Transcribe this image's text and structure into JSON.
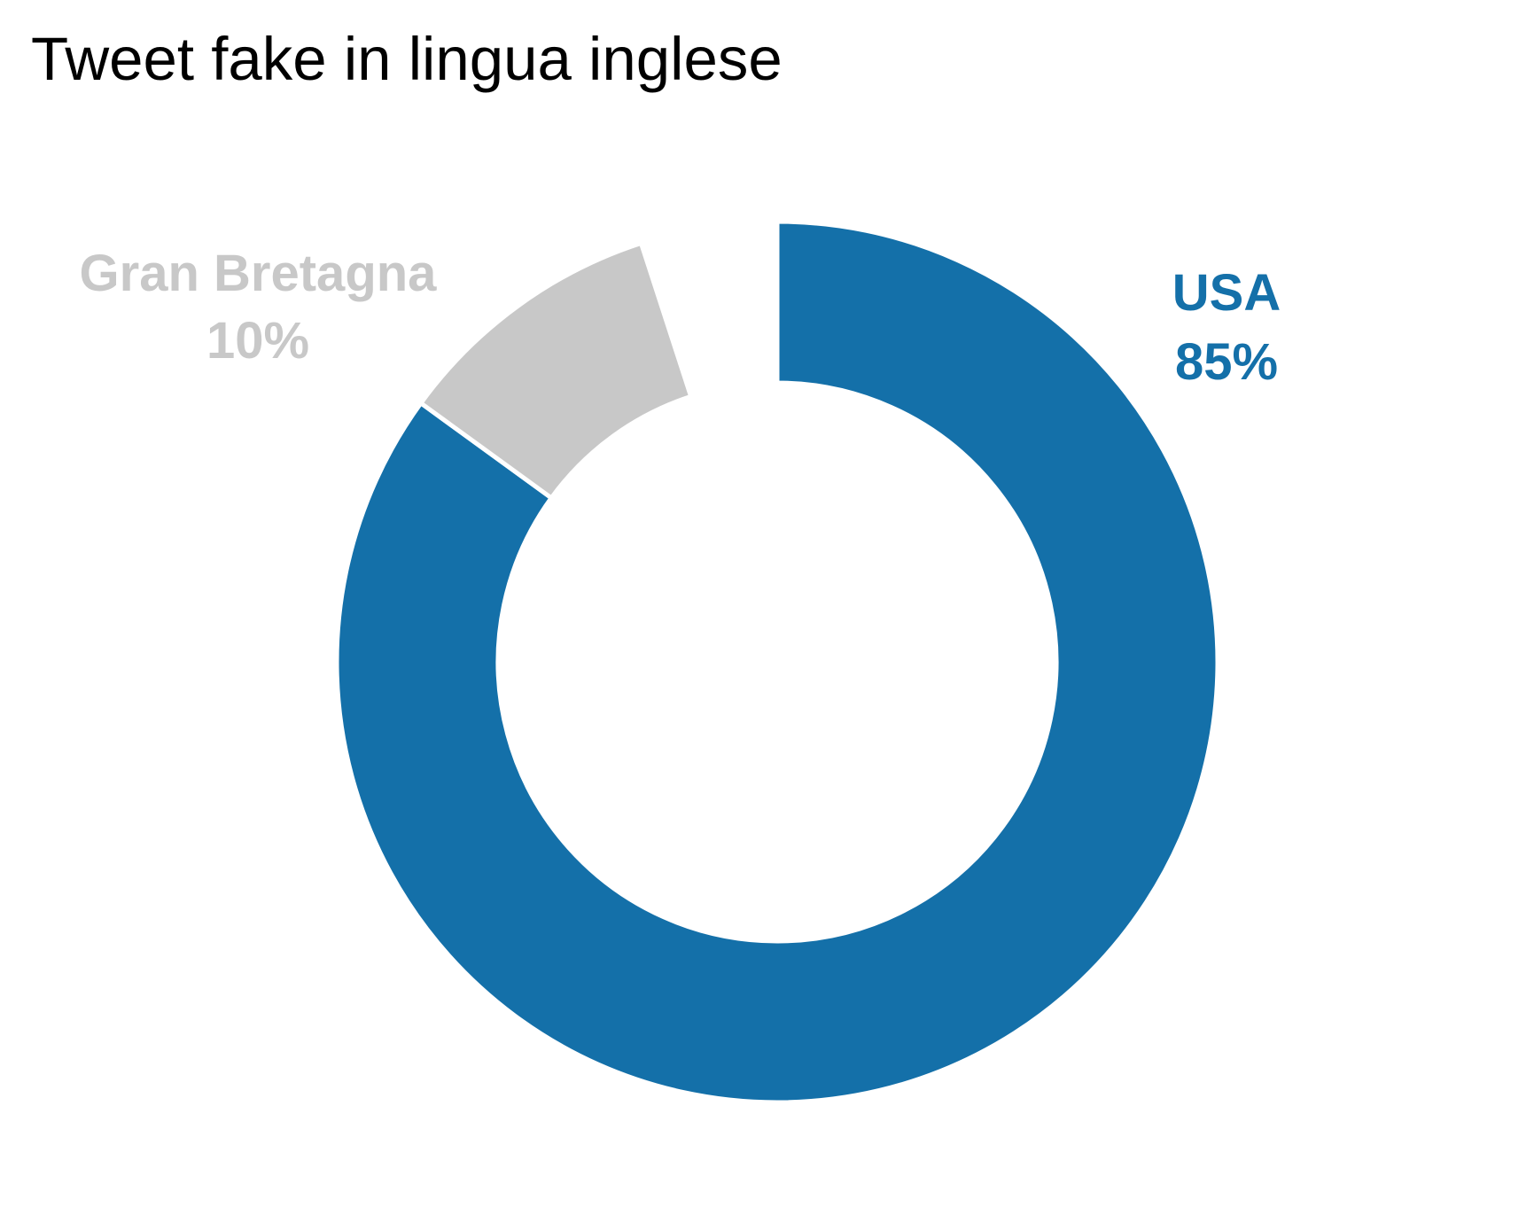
{
  "chart_data": {
    "type": "pie",
    "variant": "donut",
    "title": "Tweet fake in lingua inglese",
    "slices": [
      {
        "label": "USA",
        "value": 85,
        "value_label": "85%",
        "color": "#1470a9"
      },
      {
        "label": "Gran Bretagna",
        "value": 10,
        "value_label": "10%",
        "color": "#c8c8c8"
      },
      {
        "label": "",
        "value": 5,
        "value_label": "",
        "color": "#ffffff"
      }
    ],
    "start_angle_deg": 0,
    "direction": "clockwise",
    "legend": "none"
  }
}
